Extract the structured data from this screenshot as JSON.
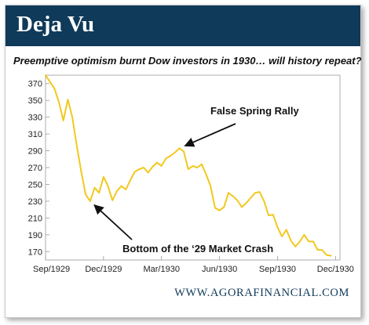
{
  "header": {
    "title": "Deja Vu"
  },
  "subtitle": "Preemptive optimism burnt Dow investors in 1930… will history repeat?",
  "footer": {
    "url": "WWW.AGORAFINANCIAL.COM"
  },
  "colors": {
    "banner": "#0f3a5a",
    "line": "#f2c81e",
    "arrow": "#111111"
  },
  "chart_data": {
    "type": "line",
    "title": "",
    "xlabel": "",
    "ylabel": "",
    "ylim": [
      160,
      380
    ],
    "yticks": [
      170,
      190,
      210,
      230,
      250,
      270,
      290,
      310,
      330,
      350,
      370
    ],
    "grid": false,
    "xticks": [
      {
        "x": 0,
        "label": "Sep/1929"
      },
      {
        "x": 13,
        "label": "Dec/1929"
      },
      {
        "x": 26,
        "label": "Mar/1930"
      },
      {
        "x": 39,
        "label": "Jun/1930"
      },
      {
        "x": 52,
        "label": "Sep/1930"
      },
      {
        "x": 65,
        "label": "Dec/1930"
      }
    ],
    "series": [
      {
        "values": [
          [
            0,
            380
          ],
          [
            1,
            372
          ],
          [
            2,
            364
          ],
          [
            3,
            348
          ],
          [
            4,
            326
          ],
          [
            5,
            351
          ],
          [
            6,
            330
          ],
          [
            7,
            296
          ],
          [
            8,
            265
          ],
          [
            9,
            238
          ],
          [
            10,
            230
          ],
          [
            11,
            246
          ],
          [
            12,
            240
          ],
          [
            13,
            259
          ],
          [
            14,
            248
          ],
          [
            15,
            231
          ],
          [
            16,
            242
          ],
          [
            17,
            248
          ],
          [
            18,
            244
          ],
          [
            19,
            255
          ],
          [
            20,
            265
          ],
          [
            21,
            268
          ],
          [
            22,
            270
          ],
          [
            23,
            264
          ],
          [
            24,
            271
          ],
          [
            25,
            276
          ],
          [
            26,
            272
          ],
          [
            27,
            281
          ],
          [
            28,
            284
          ],
          [
            29,
            288
          ],
          [
            30,
            293
          ],
          [
            31,
            289
          ],
          [
            32,
            268
          ],
          [
            33,
            272
          ],
          [
            34,
            270
          ],
          [
            35,
            274
          ],
          [
            36,
            262
          ],
          [
            37,
            248
          ],
          [
            38,
            222
          ],
          [
            39,
            219
          ],
          [
            40,
            223
          ],
          [
            41,
            240
          ],
          [
            42,
            236
          ],
          [
            43,
            231
          ],
          [
            44,
            223
          ],
          [
            45,
            228
          ],
          [
            46,
            234
          ],
          [
            47,
            240
          ],
          [
            48,
            241
          ],
          [
            49,
            230
          ],
          [
            50,
            213
          ],
          [
            51,
            214
          ],
          [
            52,
            199
          ],
          [
            53,
            188
          ],
          [
            54,
            196
          ],
          [
            55,
            183
          ],
          [
            56,
            176
          ],
          [
            57,
            182
          ],
          [
            58,
            190
          ],
          [
            59,
            182
          ],
          [
            60,
            182
          ],
          [
            61,
            172
          ],
          [
            62,
            172
          ],
          [
            63,
            166
          ],
          [
            64,
            165
          ]
        ]
      }
    ],
    "annotations": [
      {
        "text": "False Spring Rally",
        "x": 30,
        "y": 293
      },
      {
        "text": "Bottom of the ‘29 Market Crash",
        "x": 10,
        "y": 230
      }
    ]
  }
}
